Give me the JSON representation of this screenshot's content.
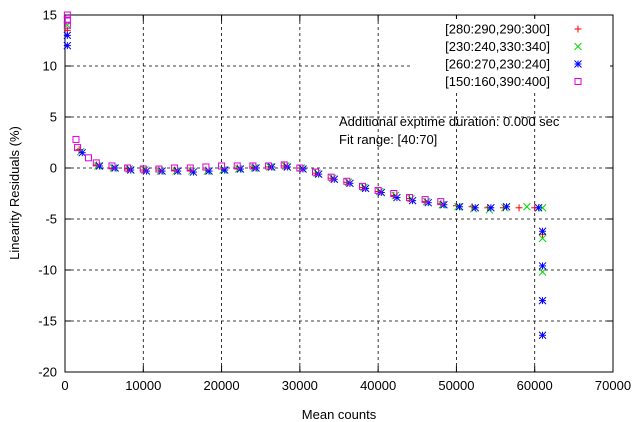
{
  "chart_data": {
    "type": "scatter",
    "xlabel": "Mean counts",
    "ylabel": "Linearity Residuals (%)",
    "xlim": [
      0,
      70000
    ],
    "ylim": [
      -20,
      15
    ],
    "xticks": [
      0,
      10000,
      20000,
      30000,
      40000,
      50000,
      60000,
      70000
    ],
    "yticks": [
      -20,
      -15,
      -10,
      -5,
      0,
      5,
      10,
      15
    ],
    "xtick_labels": [
      "0",
      "10000",
      "20000",
      "30000",
      "40000",
      "50000",
      "60000",
      "70000"
    ],
    "ytick_labels": [
      "-20",
      "-15",
      "-10",
      "-5",
      "0",
      "5",
      "10",
      "15"
    ],
    "grid": true,
    "legend_position": "top-right",
    "annotations": [
      "Additional exptime duration: 0.000 sec",
      "Fit range: [40:70]"
    ],
    "series": [
      {
        "name": "[280:290,290:300]",
        "marker": "plus",
        "color": "#ff0000",
        "x": [
          300,
          1800,
          4000,
          6000,
          8000,
          10000,
          12000,
          14000,
          16000,
          18000,
          20000,
          22000,
          24000,
          26000,
          28000,
          30000,
          32000,
          34000,
          36000,
          38000,
          40000,
          42000,
          44000,
          46000,
          48000,
          50000,
          52000,
          54000,
          56000,
          58000,
          60000,
          61000
        ],
        "y": [
          13.5,
          1.8,
          0.3,
          0.0,
          -0.1,
          -0.2,
          -0.2,
          -0.2,
          -0.2,
          -0.2,
          -0.1,
          0.0,
          0.1,
          0.1,
          0.2,
          0.0,
          -0.5,
          -1.0,
          -1.4,
          -1.9,
          -2.3,
          -2.7,
          -3.0,
          -3.3,
          -3.5,
          -3.7,
          -3.8,
          -3.9,
          -3.9,
          -3.9,
          -3.9,
          -6.5
        ]
      },
      {
        "name": "[230:240,330:340]",
        "marker": "cross",
        "color": "#00dd00",
        "x": [
          300,
          2000,
          4200,
          6200,
          8200,
          10200,
          12200,
          14200,
          16200,
          18200,
          20200,
          22200,
          24200,
          26200,
          28200,
          30200,
          32200,
          34200,
          36200,
          38200,
          40200,
          42200,
          44200,
          46200,
          48200,
          50200,
          52200,
          54200,
          56200,
          59000,
          61000,
          61000,
          61000
        ],
        "y": [
          14.0,
          1.6,
          0.2,
          0.0,
          -0.1,
          -0.2,
          -0.3,
          -0.3,
          -0.3,
          -0.3,
          -0.2,
          -0.1,
          0.0,
          0.1,
          0.2,
          0.0,
          -0.5,
          -1.0,
          -1.4,
          -1.9,
          -2.3,
          -2.7,
          -3.0,
          -3.3,
          -3.6,
          -3.8,
          -4.0,
          -4.1,
          -3.9,
          -3.8,
          -3.9,
          -6.9,
          -10.2
        ]
      },
      {
        "name": "[260:270,230:240]",
        "marker": "star",
        "color": "#0000ff",
        "x": [
          300,
          300,
          2200,
          4400,
          6400,
          8400,
          10400,
          12400,
          14400,
          16400,
          18400,
          20400,
          22400,
          24400,
          26400,
          28400,
          30400,
          32400,
          34400,
          36400,
          38400,
          40400,
          42400,
          44400,
          46400,
          48400,
          50400,
          52400,
          54400,
          56400,
          60500,
          61000,
          61000,
          61000,
          61000
        ],
        "y": [
          12.0,
          13.0,
          1.5,
          0.2,
          0.0,
          -0.2,
          -0.3,
          -0.3,
          -0.3,
          -0.4,
          -0.3,
          -0.2,
          -0.1,
          0.0,
          0.1,
          0.1,
          -0.1,
          -0.6,
          -1.1,
          -1.5,
          -2.0,
          -2.4,
          -2.9,
          -3.2,
          -3.4,
          -3.6,
          -3.8,
          -3.9,
          -3.9,
          -3.8,
          -3.9,
          -6.2,
          -9.6,
          -13.0,
          -16.4
        ]
      },
      {
        "name": "[150:160,390:400]",
        "marker": "square",
        "color": "#dd00dd",
        "x": [
          300,
          300,
          300,
          1400,
          1600,
          3000,
          4000,
          6000,
          8000,
          10000,
          12000,
          14000,
          16000,
          18000,
          20000,
          22000,
          24000,
          26000,
          28000,
          30000,
          32000,
          34000,
          36000,
          38000,
          40000,
          42000,
          44000,
          46000,
          48000
        ],
        "y": [
          15.0,
          14.5,
          14.0,
          2.8,
          2.0,
          1.0,
          0.5,
          0.2,
          0.0,
          -0.1,
          -0.1,
          0.0,
          0.0,
          0.1,
          0.2,
          0.2,
          0.2,
          0.2,
          0.3,
          0.0,
          -0.4,
          -0.9,
          -1.3,
          -1.8,
          -2.2,
          -2.5,
          -2.9,
          -3.1,
          -3.3
        ]
      }
    ]
  }
}
